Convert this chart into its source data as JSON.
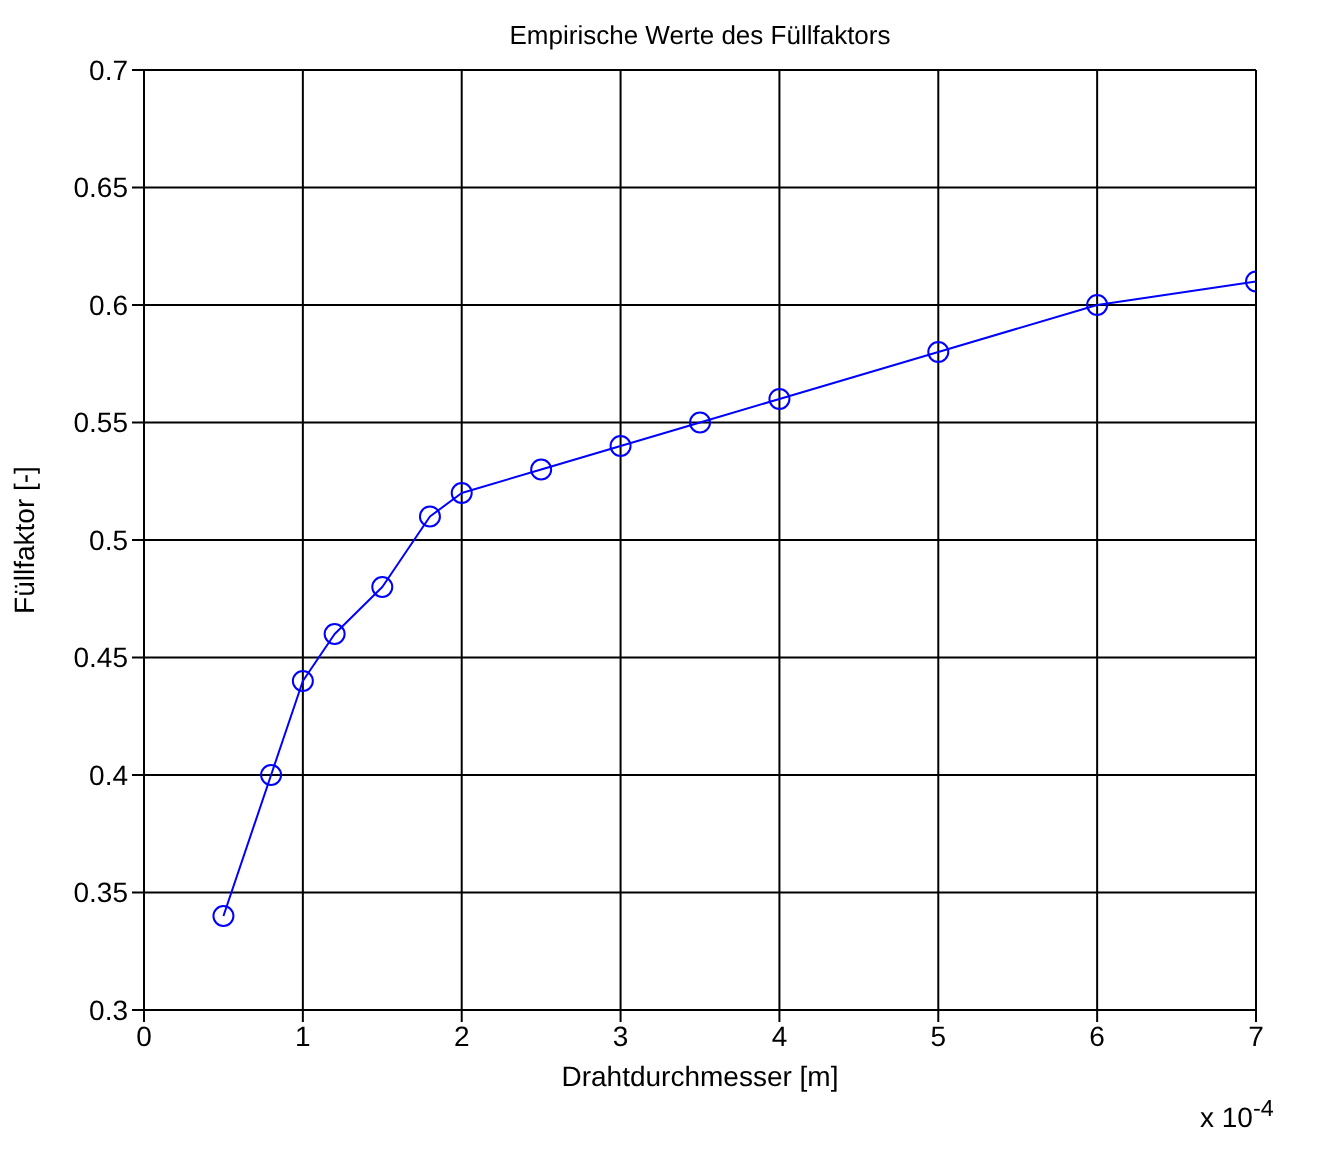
{
  "chart_data": {
    "type": "line",
    "title": "Empirische Werte des Füllfaktors",
    "xlabel": "Drahtdurchmesser [m]",
    "ylabel": "Füllfaktor [-]",
    "x": [
      0.5,
      0.8,
      1,
      1.2,
      1.5,
      1.8,
      2,
      2.5,
      3,
      3.5,
      4,
      5,
      6,
      7
    ],
    "series": [
      {
        "color": "#0000ff",
        "values": [
          0.34,
          0.4,
          0.44,
          0.46,
          0.48,
          0.51,
          0.52,
          0.53,
          0.54,
          0.55,
          0.56,
          0.58,
          0.6,
          0.61
        ]
      }
    ],
    "xlim": [
      0,
      7
    ],
    "xticks": [
      0,
      1,
      2,
      3,
      4,
      5,
      6,
      7
    ],
    "ylim": [
      0.3,
      0.7
    ],
    "yticks": [
      0.3,
      0.35,
      0.4,
      0.45,
      0.5,
      0.55,
      0.6,
      0.65,
      0.7
    ],
    "grid": true,
    "marker": "circle",
    "line_style": "solid",
    "legend": false,
    "annotations": [
      "x 10$^{-4}$"
    ]
  }
}
